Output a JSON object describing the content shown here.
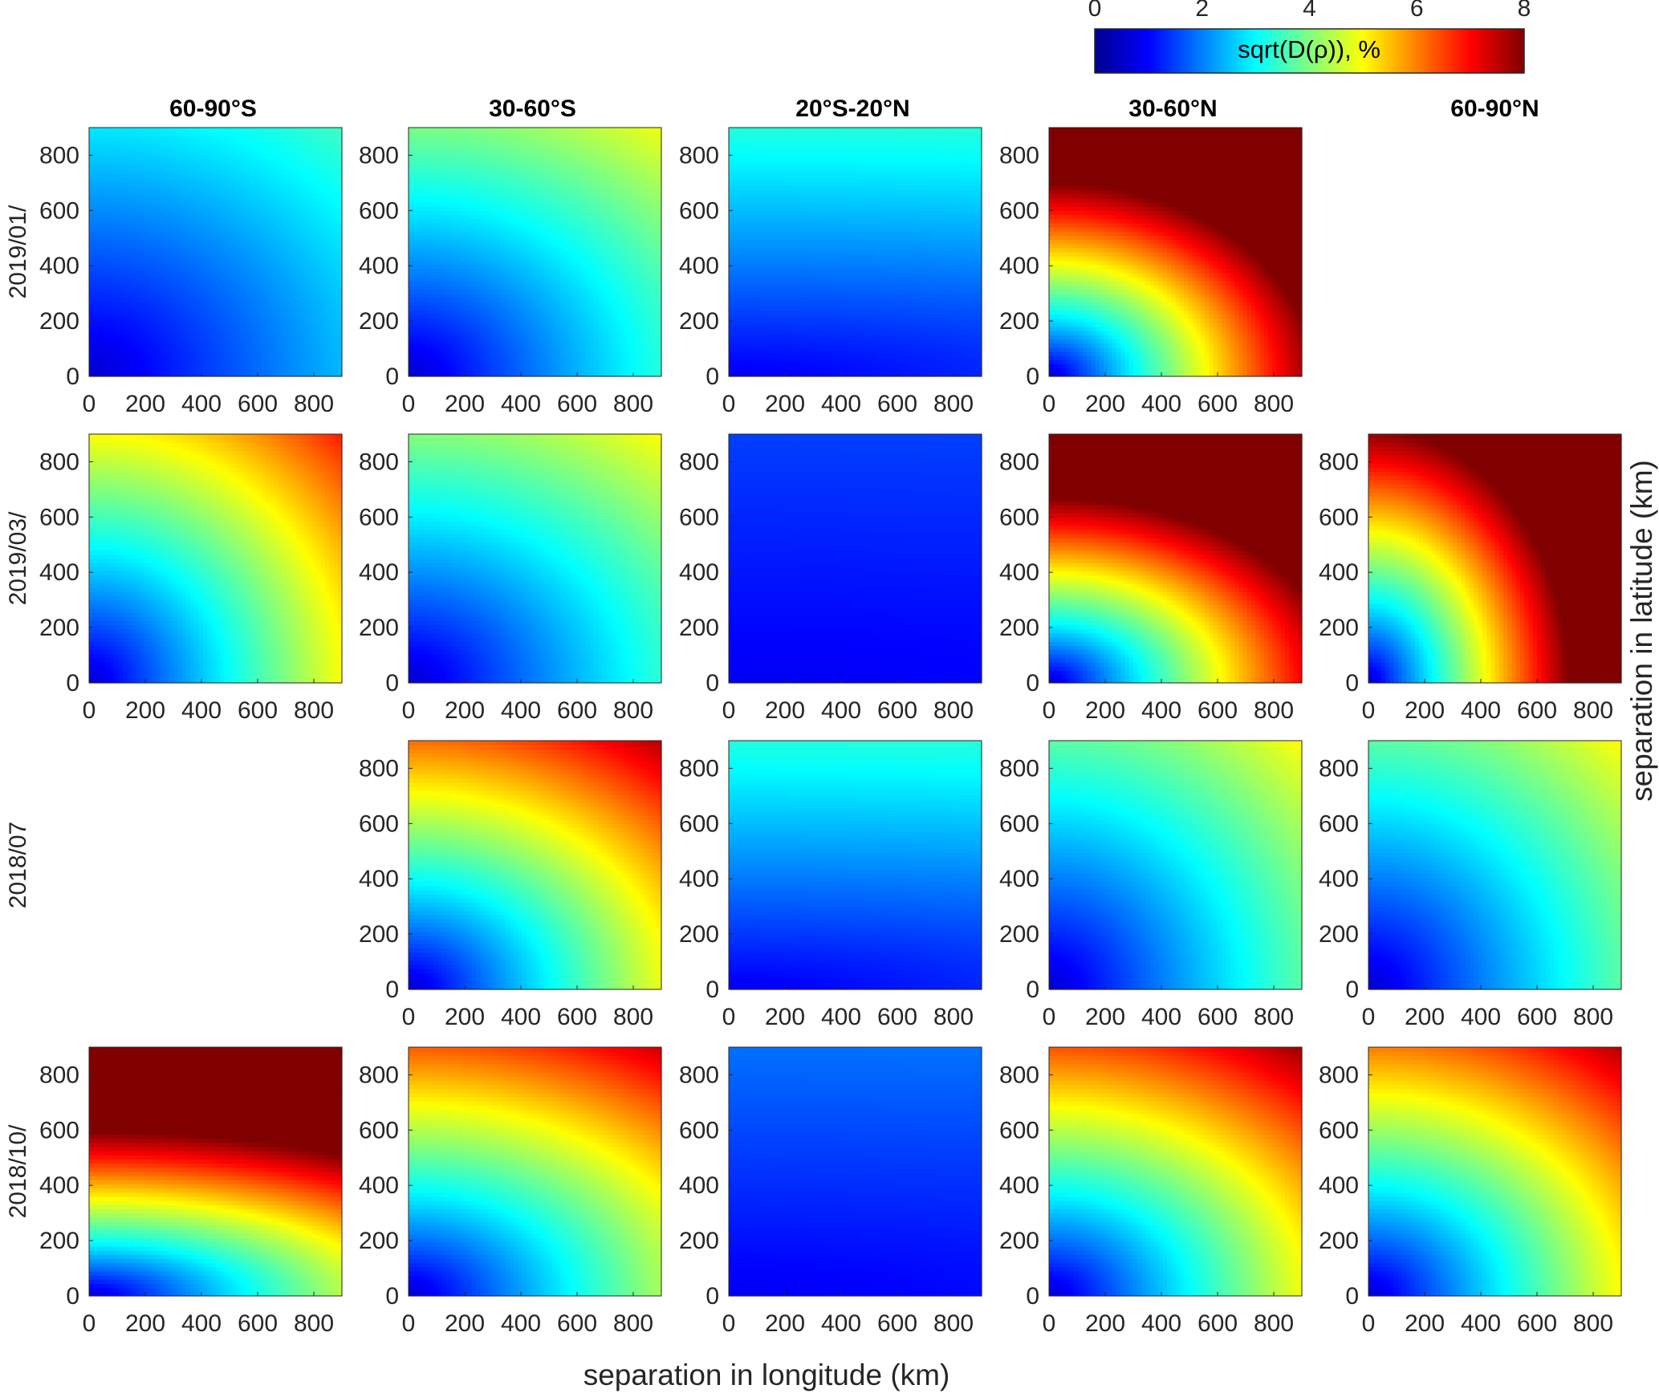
{
  "chart_data": {
    "type": "heatmap",
    "layout": "small-multiples grid of heatmaps",
    "columns": [
      "60-90°S",
      "30-60°S",
      "20°S-20°N",
      "30-60°N",
      "60-90°N"
    ],
    "rows": [
      "2019/01/",
      "2019/03/",
      "2018/07",
      "2018/10/"
    ],
    "xlabel": "separation in longitude (km)",
    "ylabel": "separation in latitude (km)",
    "xlim": [
      0,
      900
    ],
    "ylim": [
      0,
      900
    ],
    "xticks": [
      "0",
      "200",
      "400",
      "600",
      "800"
    ],
    "yticks": [
      "0",
      "200",
      "400",
      "600",
      "800"
    ],
    "colorbar": {
      "label": "sqrt(D(ρ)), %",
      "range": [
        0,
        8
      ],
      "ticks": [
        "0",
        "2",
        "4",
        "6",
        "8"
      ],
      "colormap": "jet",
      "placement": "top-right"
    },
    "panels": [
      {
        "row": 0,
        "col": 0,
        "present": true,
        "origin": 0.6,
        "corner": 3.5,
        "rx": 1.2,
        "ry": 1.0
      },
      {
        "row": 0,
        "col": 1,
        "present": true,
        "origin": 0.6,
        "corner": 4.9,
        "rx": 1.0,
        "ry": 0.8
      },
      {
        "row": 0,
        "col": 2,
        "present": true,
        "origin": 0.9,
        "corner": 3.3,
        "rx": 6.0,
        "ry": 1.0
      },
      {
        "row": 0,
        "col": 3,
        "present": true,
        "origin": 0.6,
        "corner": 8.0,
        "rx": 0.7,
        "ry": 0.52
      },
      {
        "row": 0,
        "col": 4,
        "present": false
      },
      {
        "row": 1,
        "col": 0,
        "present": true,
        "origin": 0.6,
        "corner": 6.8,
        "rx": 1.1,
        "ry": 1.1
      },
      {
        "row": 1,
        "col": 1,
        "present": true,
        "origin": 0.6,
        "corner": 5.0,
        "rx": 1.0,
        "ry": 0.8
      },
      {
        "row": 1,
        "col": 2,
        "present": true,
        "origin": 0.9,
        "corner": 1.5,
        "rx": 6.0,
        "ry": 1.0
      },
      {
        "row": 1,
        "col": 3,
        "present": true,
        "origin": 0.6,
        "corner": 8.0,
        "rx": 0.8,
        "ry": 0.52
      },
      {
        "row": 1,
        "col": 4,
        "present": true,
        "origin": 0.6,
        "corner": 8.0,
        "rx": 0.85,
        "ry": 1.1
      },
      {
        "row": 2,
        "col": 0,
        "present": false
      },
      {
        "row": 2,
        "col": 1,
        "present": true,
        "origin": 0.6,
        "corner": 7.6,
        "rx": 1.1,
        "ry": 0.85
      },
      {
        "row": 2,
        "col": 2,
        "present": true,
        "origin": 0.9,
        "corner": 3.3,
        "rx": 6.0,
        "ry": 1.0
      },
      {
        "row": 2,
        "col": 3,
        "present": true,
        "origin": 0.6,
        "corner": 5.0,
        "rx": 1.0,
        "ry": 1.0
      },
      {
        "row": 2,
        "col": 4,
        "present": true,
        "origin": 0.6,
        "corner": 5.0,
        "rx": 1.0,
        "ry": 1.0
      },
      {
        "row": 3,
        "col": 0,
        "present": true,
        "origin": 0.6,
        "corner": 8.0,
        "rx": 0.7,
        "ry": 0.24
      },
      {
        "row": 3,
        "col": 1,
        "present": true,
        "origin": 0.6,
        "corner": 7.4,
        "rx": 1.3,
        "ry": 0.85
      },
      {
        "row": 3,
        "col": 2,
        "present": true,
        "origin": 0.9,
        "corner": 1.9,
        "rx": 6.0,
        "ry": 1.0
      },
      {
        "row": 3,
        "col": 3,
        "present": true,
        "origin": 0.6,
        "corner": 7.8,
        "rx": 1.2,
        "ry": 0.9
      },
      {
        "row": 3,
        "col": 4,
        "present": true,
        "origin": 0.6,
        "corner": 7.6,
        "rx": 1.1,
        "ry": 0.9
      }
    ]
  }
}
